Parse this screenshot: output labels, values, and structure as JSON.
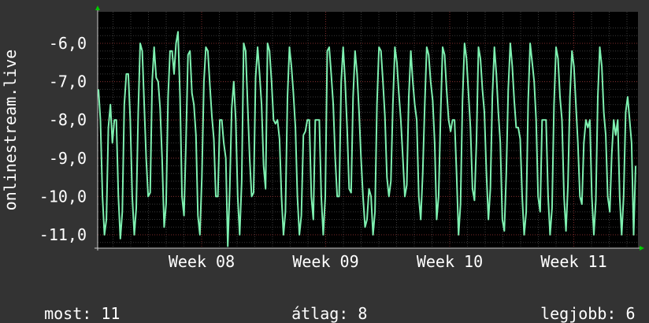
{
  "chart_data": {
    "type": "line",
    "title": "",
    "ylabel": "onlinestream.live",
    "xlabel": "",
    "ylim": [
      -11.4,
      -5.6
    ],
    "y_ticks": [
      {
        "value": -6,
        "label": "-6,0"
      },
      {
        "value": -7,
        "label": "-7,0"
      },
      {
        "value": -8,
        "label": "-8,0"
      },
      {
        "value": -9,
        "label": "-9,0"
      },
      {
        "value": -10,
        "label": "-10,0"
      },
      {
        "value": -11,
        "label": "-11,0"
      }
    ],
    "x_ticks": [
      {
        "label": "Week 08"
      },
      {
        "label": "Week 09"
      },
      {
        "label": "Week 10"
      },
      {
        "label": "Week 11"
      }
    ],
    "grid": true,
    "legend": "none",
    "colors": {
      "background": "#333333",
      "plot_background": "#000000",
      "grid_minor": "#3a3a3a",
      "grid_major": "#7a2a2a",
      "line": "#7ef0b0",
      "arrow": "#00cc00",
      "text": "#ffffff"
    },
    "series": [
      {
        "values": [
          -7.2,
          -8.0,
          -10.0,
          -11.0,
          -10.6,
          -8.2,
          -7.6,
          -8.6,
          -8.0,
          -8.0,
          -10.0,
          -11.1,
          -10.4,
          -7.6,
          -6.8,
          -6.8,
          -8.0,
          -10.0,
          -11.0,
          -10.3,
          -7.8,
          -6.0,
          -6.2,
          -7.6,
          -9.0,
          -10.0,
          -9.9,
          -7.0,
          -6.1,
          -6.9,
          -7.0,
          -7.7,
          -9.0,
          -10.8,
          -10.2,
          -7.4,
          -6.2,
          -6.2,
          -6.8,
          -6.0,
          -5.7,
          -7.4,
          -10.0,
          -10.5,
          -8.6,
          -6.3,
          -6.2,
          -7.3,
          -7.6,
          -8.4,
          -10.5,
          -11.0,
          -9.5,
          -7.0,
          -6.1,
          -6.2,
          -7.1,
          -7.9,
          -8.5,
          -10.0,
          -10.0,
          -8.0,
          -8.0,
          -8.6,
          -9.0,
          -11.3,
          -9.8,
          -7.7,
          -7.0,
          -8.0,
          -10.0,
          -11.0,
          -9.6,
          -6.0,
          -6.2,
          -7.6,
          -9.0,
          -10.0,
          -9.9,
          -6.9,
          -6.1,
          -6.8,
          -7.6,
          -9.2,
          -9.8,
          -6.0,
          -6.2,
          -7.0,
          -8.0,
          -8.1,
          -8.0,
          -8.5,
          -10.0,
          -11.0,
          -10.4,
          -7.4,
          -6.1,
          -6.6,
          -7.3,
          -8.2,
          -10.0,
          -11.0,
          -10.5,
          -8.4,
          -8.3,
          -8.0,
          -8.0,
          -10.0,
          -10.6,
          -8.0,
          -8.0,
          -8.0,
          -10.0,
          -11.0,
          -10.0,
          -6.2,
          -6.1,
          -6.8,
          -7.6,
          -9.0,
          -10.0,
          -10.0,
          -7.0,
          -6.1,
          -7.0,
          -8.2,
          -9.8,
          -9.9,
          -7.4,
          -6.2,
          -6.8,
          -7.8,
          -9.0,
          -10.0,
          -10.8,
          -10.6,
          -9.8,
          -10.0,
          -11.0,
          -10.4,
          -7.6,
          -6.1,
          -6.2,
          -7.0,
          -7.9,
          -9.5,
          -10.0,
          -9.6,
          -7.6,
          -6.1,
          -6.5,
          -7.3,
          -8.0,
          -9.0,
          -10.0,
          -9.7,
          -7.4,
          -6.2,
          -7.0,
          -7.6,
          -8.0,
          -10.0,
          -10.6,
          -9.4,
          -7.6,
          -6.1,
          -6.3,
          -7.0,
          -7.5,
          -8.6,
          -10.6,
          -10.0,
          -7.8,
          -6.1,
          -6.3,
          -7.2,
          -8.0,
          -8.3,
          -8.0,
          -8.0,
          -9.4,
          -11.0,
          -10.2,
          -7.5,
          -6.0,
          -6.4,
          -7.3,
          -8.2,
          -9.8,
          -10.1,
          -8.6,
          -6.1,
          -6.4,
          -7.2,
          -7.8,
          -9.4,
          -10.6,
          -9.8,
          -7.4,
          -6.1,
          -6.8,
          -7.8,
          -8.6,
          -10.6,
          -10.9,
          -9.4,
          -7.2,
          -6.0,
          -6.6,
          -7.5,
          -8.2,
          -8.2,
          -8.5,
          -10.0,
          -11.0,
          -10.4,
          -7.5,
          -6.0,
          -6.5,
          -7.0,
          -8.0,
          -10.0,
          -10.4,
          -8.0,
          -8.0,
          -8.0,
          -10.0,
          -11.0,
          -10.3,
          -7.6,
          -6.1,
          -6.4,
          -7.4,
          -8.0,
          -10.0,
          -10.9,
          -9.7,
          -7.4,
          -6.2,
          -6.6,
          -7.6,
          -8.6,
          -10.0,
          -10.2,
          -8.6,
          -8.0,
          -8.2,
          -8.0,
          -10.0,
          -11.0,
          -10.1,
          -7.4,
          -6.1,
          -6.6,
          -7.8,
          -8.4,
          -10.0,
          -10.4,
          -8.9,
          -8.0,
          -8.4,
          -8.0,
          -10.0,
          -11.0,
          -10.0,
          -7.8,
          -7.4,
          -8.0,
          -8.6,
          -11.0,
          -9.2
        ],
        "color": "#7ef0b0"
      }
    ]
  },
  "footer": {
    "current_label": "most:",
    "current_value": "11",
    "average_label": "átlag:",
    "average_value": "8",
    "best_label": "legjobb:",
    "best_value": "6"
  }
}
